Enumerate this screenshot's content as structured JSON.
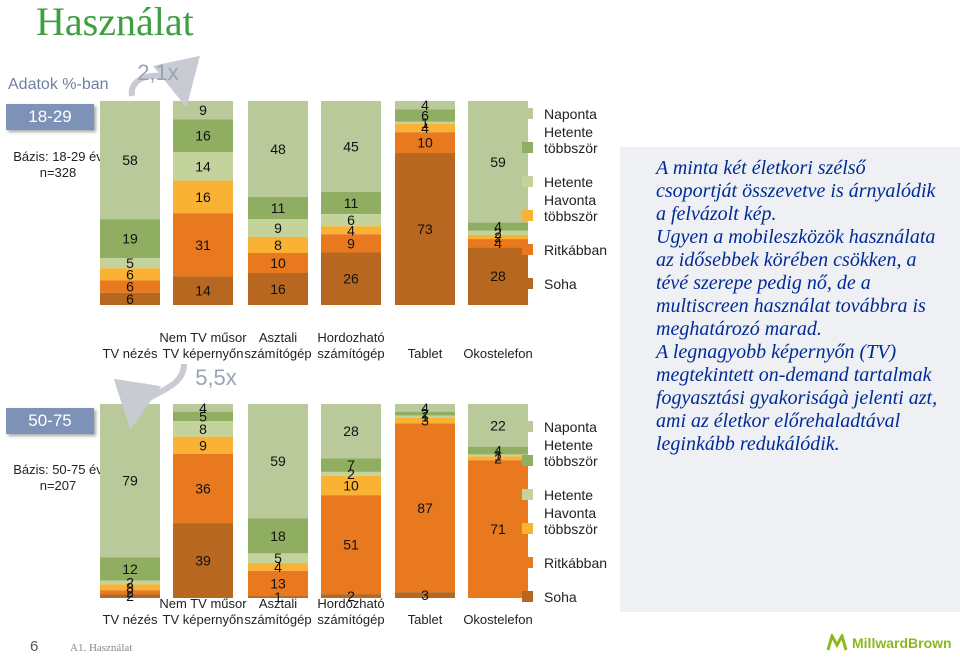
{
  "page": {
    "title": "Használat",
    "subtitle": "Adatok %-ban",
    "page_number": "6",
    "footer": "A1. Használat",
    "logo": "MillwardBrown"
  },
  "groups": [
    {
      "tab": "18-29",
      "base": "Bázis: 18-29 év n=328",
      "ratio": "2,1x"
    },
    {
      "tab": "50-75",
      "base": "Bázis: 50-75 év n=207",
      "ratio": "5,5x"
    }
  ],
  "note": {
    "paragraph1": "A minta két életkori szélső csoportját összevetve is árnyalódik a felvázolt kép.",
    "paragraph2": "Ugyen a mobileszközök használata az idősebbek körében csökken, a tévé szerepe pedig nő, de a multiscreen használat továbbra is meghatározó marad.",
    "paragraph3": "A legnagyobb képernyőn (TV) megtekintett on-demand tartalmak fogyasztási gyakoriságà jelenti azt, ami az életkor előrehaladtával leginkább redukálódik."
  },
  "chart_data": [
    {
      "type": "bar",
      "stacked": true,
      "group": "18-29",
      "categories": [
        "TV nézés",
        "Nem TV műsor TV képernyőn",
        "Asztali számítógép",
        "Hordozható számítógép",
        "Tablet",
        "Okostelefon"
      ],
      "series": [
        {
          "name": "Naponta",
          "color": "#b9c99a",
          "values": [
            58,
            9,
            48,
            45,
            4,
            59
          ]
        },
        {
          "name": "Hetente többször",
          "color": "#8fae62",
          "values": [
            19,
            16,
            11,
            11,
            6,
            4
          ]
        },
        {
          "name": "Hetente",
          "color": "#c3d39b",
          "values": [
            5,
            14,
            9,
            6,
            1,
            2
          ]
        },
        {
          "name": "Havonta többször",
          "color": "#f9b233",
          "values": [
            6,
            16,
            8,
            4,
            4,
            2
          ]
        },
        {
          "name": "Ritkábban",
          "color": "#e8791f",
          "values": [
            6,
            31,
            10,
            9,
            10,
            4
          ]
        },
        {
          "name": "Soha",
          "color": "#b7671f",
          "values": [
            6,
            14,
            16,
            26,
            73,
            28
          ]
        }
      ]
    },
    {
      "type": "bar",
      "stacked": true,
      "group": "50-75",
      "categories": [
        "TV nézés",
        "Nem TV műsor TV képernyőn",
        "Asztali számítógép",
        "Hordozható számítógép",
        "Tablet",
        "Okostelefon"
      ],
      "series": [
        {
          "name": "Naponta",
          "color": "#b9c99a",
          "values": [
            79,
            4,
            59,
            28,
            4,
            22
          ]
        },
        {
          "name": "Hetente többször",
          "color": "#8fae62",
          "values": [
            12,
            5,
            18,
            7,
            2,
            4
          ]
        },
        {
          "name": "Hetente",
          "color": "#c3d39b",
          "values": [
            2,
            8,
            5,
            2,
            1,
            1
          ]
        },
        {
          "name": "Havonta többször",
          "color": "#f9b233",
          "values": [
            3,
            9,
            4,
            10,
            3,
            2
          ]
        },
        {
          "name": "Ritkábban",
          "color": "#e8791f",
          "values": [
            2,
            36,
            13,
            51,
            87,
            71
          ]
        },
        {
          "name": "Soha",
          "color": "#b7671f",
          "values": [
            2,
            39,
            1,
            2,
            3,
            0
          ]
        }
      ]
    }
  ]
}
